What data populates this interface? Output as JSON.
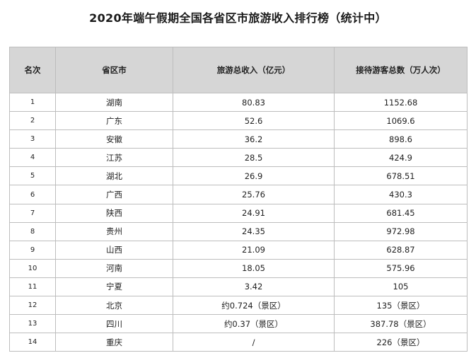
{
  "title": "2020年端午假期全国各省区市旅游收入排行榜（统计中）",
  "table": {
    "headers": [
      "名次",
      "省区市",
      "旅游总收入（亿元）",
      "接待游客总数（万人次）"
    ],
    "rows": [
      [
        "1",
        "湖南",
        "80.83",
        "1152.68"
      ],
      [
        "2",
        "广东",
        "52.6",
        "1069.6"
      ],
      [
        "3",
        "安徽",
        "36.2",
        "898.6"
      ],
      [
        "4",
        "江苏",
        "28.5",
        "424.9"
      ],
      [
        "5",
        "湖北",
        "26.9",
        "678.51"
      ],
      [
        "6",
        "广西",
        "25.76",
        "430.3"
      ],
      [
        "7",
        "陕西",
        "24.91",
        "681.45"
      ],
      [
        "8",
        "贵州",
        "24.35",
        "972.98"
      ],
      [
        "9",
        "山西",
        "21.09",
        "628.87"
      ],
      [
        "10",
        "河南",
        "18.05",
        "575.96"
      ],
      [
        "11",
        "宁夏",
        "3.42",
        "105"
      ],
      [
        "12",
        "北京",
        "约0.724（景区）",
        "135（景区）"
      ],
      [
        "13",
        "四川",
        "约0.37（景区）",
        "387.78（景区）"
      ],
      [
        "14",
        "重庆",
        "/",
        "226（景区）"
      ]
    ]
  }
}
